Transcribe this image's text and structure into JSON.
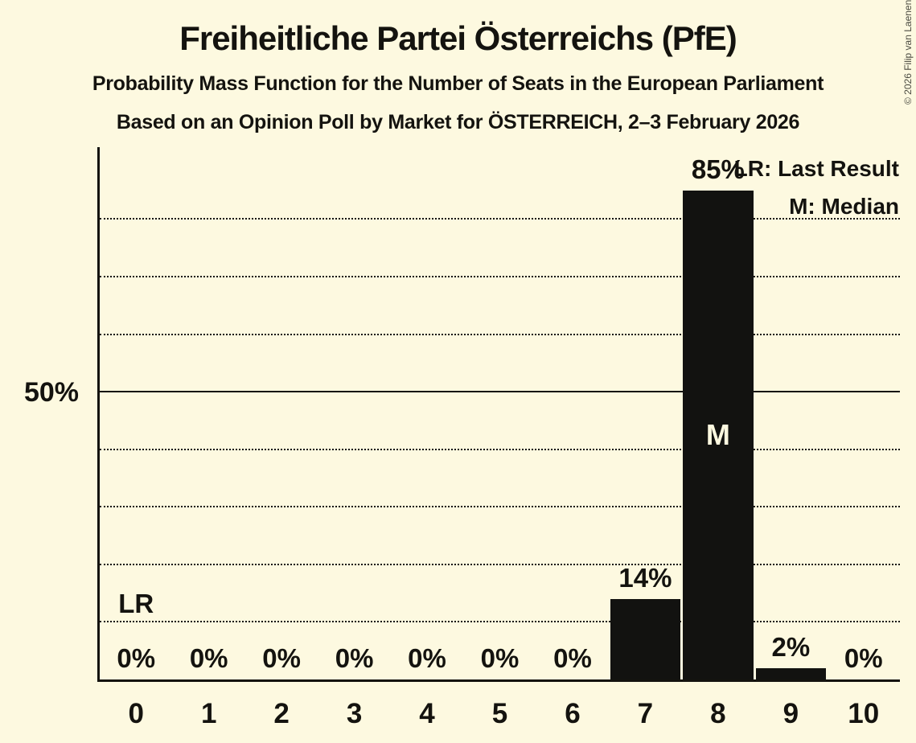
{
  "page": {
    "background_color": "#FDF9E0",
    "bar_color": "#121210",
    "text_color": "#14130f",
    "copyright": "© 2026 Filip van Laenen"
  },
  "header": {
    "title": "Freiheitliche Partei Österreichs (PfE)",
    "subtitle1": "Probability Mass Function for the Number of Seats in the European Parliament",
    "subtitle2": "Based on an Opinion Poll by Market for ÖSTERREICH, 2–3 February 2026"
  },
  "legend": {
    "last_result": "LR: Last Result",
    "median": "M: Median"
  },
  "y_axis": {
    "tick_label": "50%",
    "tick_value": 50
  },
  "chart_data": {
    "type": "bar",
    "title": "Freiheitliche Partei Österreichs (PfE)",
    "xlabel": "Number of Seats in the European Parliament",
    "ylabel": "Probability",
    "categories": [
      "0",
      "1",
      "2",
      "3",
      "4",
      "5",
      "6",
      "7",
      "8",
      "9",
      "10"
    ],
    "values": [
      0,
      0,
      0,
      0,
      0,
      0,
      0,
      14,
      85,
      2,
      0
    ],
    "bar_labels": [
      "0%",
      "0%",
      "0%",
      "0%",
      "0%",
      "0%",
      "0%",
      "14%",
      "85%",
      "2%",
      "0%"
    ],
    "ylim": [
      0,
      92.5
    ],
    "gridlines_pct": [
      10,
      20,
      30,
      40,
      50,
      60,
      70,
      80
    ],
    "solid_gridline_pct": 50,
    "grid_on": true,
    "legend_position": "top-right",
    "last_result_seat_index": 0,
    "last_result_marker": "LR",
    "median_seat_index": 8,
    "median_marker": "M"
  }
}
